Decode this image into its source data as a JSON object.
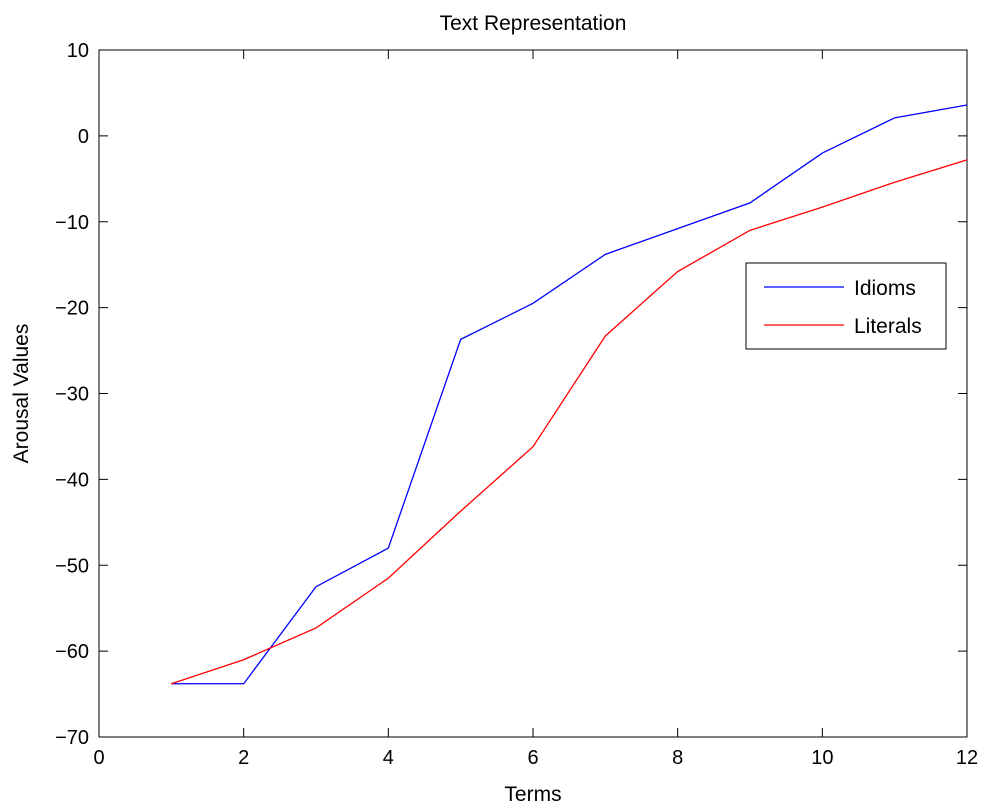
{
  "chart_data": {
    "type": "line",
    "title": "Text Representation",
    "xlabel": "Terms",
    "ylabel": "Arousal Values",
    "xlim": [
      0,
      12
    ],
    "ylim": [
      -70,
      10
    ],
    "xticks": [
      0,
      2,
      4,
      6,
      8,
      10,
      12
    ],
    "yticks": [
      10,
      0,
      -10,
      -20,
      -30,
      -40,
      -50,
      -60,
      -70
    ],
    "grid": false,
    "legend_position": "right",
    "x": [
      1,
      2,
      3,
      4,
      5,
      6,
      7,
      8,
      9,
      10,
      11,
      12
    ],
    "series": [
      {
        "name": "Idioms",
        "color": "#0000ff",
        "values": [
          -63.8,
          -63.8,
          -52.5,
          -48.0,
          -23.7,
          -19.5,
          -13.8,
          -10.8,
          -7.8,
          -2.0,
          2.1,
          3.6
        ]
      },
      {
        "name": "Literals",
        "color": "#ff0000",
        "values": [
          -63.8,
          -61.0,
          -57.3,
          -51.5,
          -43.7,
          -36.2,
          -23.3,
          -15.8,
          -11.0,
          -8.3,
          -5.4,
          -2.8
        ]
      }
    ]
  }
}
